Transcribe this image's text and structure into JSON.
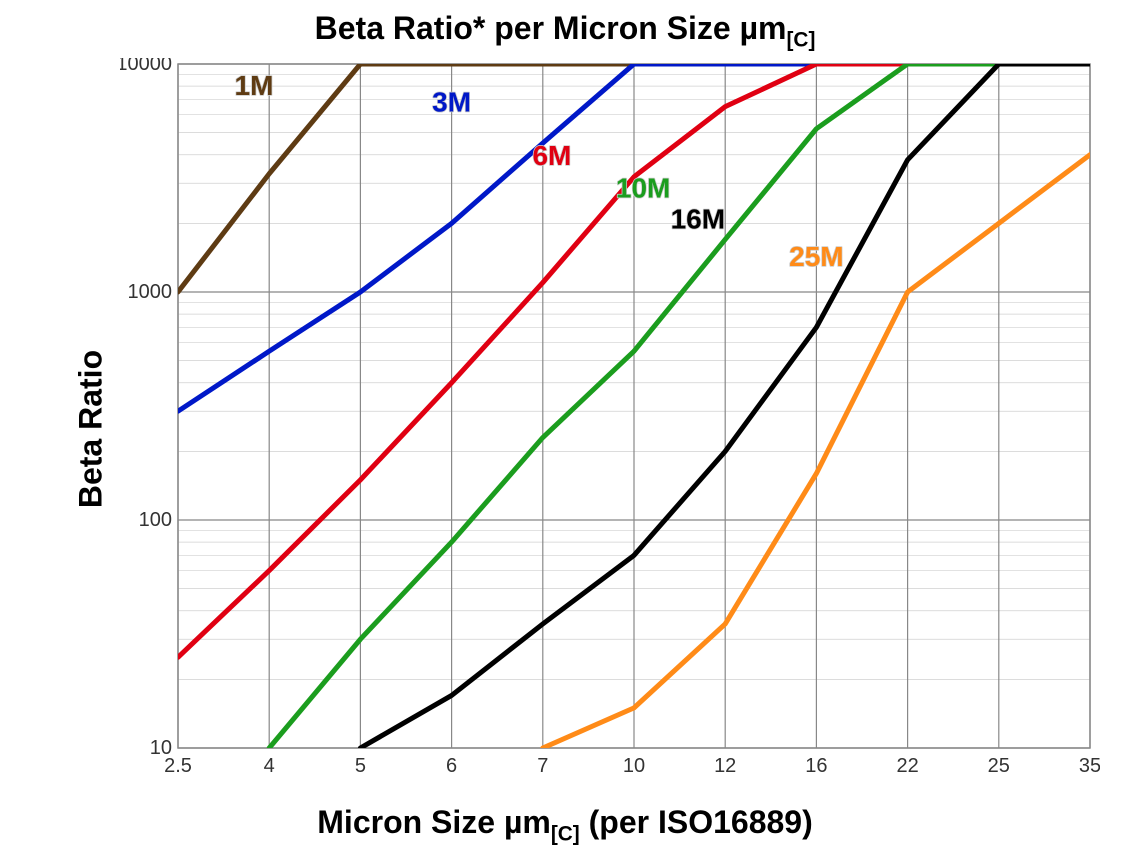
{
  "chart": {
    "type": "line",
    "title": "Beta Ratio* per Micron Size µm",
    "title_sub": "[C]",
    "title_fontsize": 32,
    "x_axis_title": "Micron Size µm",
    "x_axis_title_sub": "[C]",
    "x_axis_title_suffix": " (per ISO16889)",
    "y_axis_title": "Beta Ratio",
    "label_fontsize": 32,
    "tick_fontsize": 20,
    "background_color": "#ffffff",
    "plot_background": "#ffffff",
    "plot_border_color": "#888888",
    "major_grid_color": "#888888",
    "minor_grid_color": "#d0d0d0",
    "major_grid_width": 1.2,
    "minor_grid_width": 0.7,
    "line_width": 5,
    "series_label_fontsize": 28,
    "x_scale": "category",
    "y_scale": "log",
    "ylim": [
      10,
      10000
    ],
    "x_ticks": [
      {
        "label": "2.5",
        "pos": 0
      },
      {
        "label": "4",
        "pos": 1
      },
      {
        "label": "5",
        "pos": 2
      },
      {
        "label": "6",
        "pos": 3
      },
      {
        "label": "7",
        "pos": 4
      },
      {
        "label": "10",
        "pos": 5
      },
      {
        "label": "12",
        "pos": 6
      },
      {
        "label": "16",
        "pos": 7
      },
      {
        "label": "22",
        "pos": 8
      },
      {
        "label": "25",
        "pos": 9
      },
      {
        "label": "35",
        "pos": 10
      }
    ],
    "y_major_ticks": [
      10,
      100,
      1000,
      10000
    ],
    "y_minor_ticks": [
      20,
      30,
      40,
      50,
      60,
      70,
      80,
      90,
      200,
      300,
      400,
      500,
      600,
      700,
      800,
      900,
      2000,
      3000,
      4000,
      5000,
      6000,
      7000,
      8000,
      9000
    ],
    "series": [
      {
        "name": "1M",
        "label": "1M",
        "color": "#5e3b13",
        "label_x": 0.62,
        "label_y": 7300,
        "label_anchor": "start",
        "data": [
          {
            "x": 0,
            "y": 1000
          },
          {
            "x": 1,
            "y": 3300
          },
          {
            "x": 2,
            "y": 10000
          },
          {
            "x": 10,
            "y": 10000
          }
        ]
      },
      {
        "name": "3M",
        "label": "3M",
        "color": "#0018c8",
        "label_x": 3.0,
        "label_y": 6200,
        "label_anchor": "middle",
        "data": [
          {
            "x": 0,
            "y": 300
          },
          {
            "x": 1,
            "y": 550
          },
          {
            "x": 2,
            "y": 1000
          },
          {
            "x": 3,
            "y": 2000
          },
          {
            "x": 4,
            "y": 4500
          },
          {
            "x": 5,
            "y": 10000
          },
          {
            "x": 10,
            "y": 10000
          }
        ]
      },
      {
        "name": "6M",
        "label": "6M",
        "color": "#e00012",
        "label_x": 4.1,
        "label_y": 3600,
        "label_anchor": "middle",
        "data": [
          {
            "x": 0,
            "y": 25
          },
          {
            "x": 1,
            "y": 60
          },
          {
            "x": 2,
            "y": 150
          },
          {
            "x": 3,
            "y": 400
          },
          {
            "x": 4,
            "y": 1100
          },
          {
            "x": 5,
            "y": 3200
          },
          {
            "x": 6,
            "y": 6500
          },
          {
            "x": 7,
            "y": 10000
          },
          {
            "x": 10,
            "y": 10000
          }
        ]
      },
      {
        "name": "10M",
        "label": "10M",
        "color": "#1b9d1e",
        "label_x": 5.1,
        "label_y": 2600,
        "label_anchor": "middle",
        "data": [
          {
            "x": 1,
            "y": 10
          },
          {
            "x": 2,
            "y": 30
          },
          {
            "x": 3,
            "y": 80
          },
          {
            "x": 4,
            "y": 230
          },
          {
            "x": 5,
            "y": 550
          },
          {
            "x": 6,
            "y": 1700
          },
          {
            "x": 7,
            "y": 5200
          },
          {
            "x": 8,
            "y": 10000
          },
          {
            "x": 10,
            "y": 10000
          }
        ]
      },
      {
        "name": "16M",
        "label": "16M",
        "color": "#000000",
        "label_x": 5.7,
        "label_y": 1900,
        "label_anchor": "middle",
        "data": [
          {
            "x": 2,
            "y": 10
          },
          {
            "x": 3,
            "y": 17
          },
          {
            "x": 4,
            "y": 35
          },
          {
            "x": 5,
            "y": 70
          },
          {
            "x": 6,
            "y": 200
          },
          {
            "x": 7,
            "y": 700
          },
          {
            "x": 8,
            "y": 3800
          },
          {
            "x": 9,
            "y": 10000
          },
          {
            "x": 10,
            "y": 10000
          }
        ]
      },
      {
        "name": "25M",
        "label": "25M",
        "color": "#ff8b18",
        "label_x": 7.0,
        "label_y": 1300,
        "label_anchor": "middle",
        "data": [
          {
            "x": 4,
            "y": 10
          },
          {
            "x": 5,
            "y": 15
          },
          {
            "x": 6,
            "y": 35
          },
          {
            "x": 7,
            "y": 160
          },
          {
            "x": 8,
            "y": 1000
          },
          {
            "x": 9,
            "y": 2000
          },
          {
            "x": 10,
            "y": 4000
          }
        ]
      }
    ]
  }
}
